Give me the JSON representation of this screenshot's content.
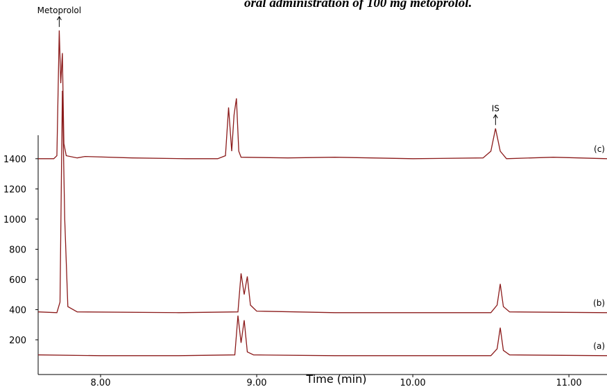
{
  "chart_data": {
    "type": "line",
    "title": "oral administration of 100 mg metoprolol.",
    "x_label": "Time (min)",
    "xlim": [
      7.6,
      11.244
    ],
    "ylim": [
      -30,
      2300
    ],
    "xticks": [
      {
        "value": 8,
        "label": "8.00"
      },
      {
        "value": 9,
        "label": "9.00"
      },
      {
        "value": 10,
        "label": "10.00"
      },
      {
        "value": 11,
        "label": "11.00"
      }
    ],
    "yticks": [
      200,
      400,
      600,
      800,
      1000,
      1200,
      1400
    ],
    "peak_labels": [
      "Metoprolol",
      "IS"
    ],
    "series": [
      {
        "name": "(c)",
        "color": "#8b1a1a",
        "x": [
          7.6,
          7.7,
          7.72,
          7.735,
          7.745,
          7.755,
          7.765,
          7.78,
          7.85,
          7.9,
          8.2,
          8.55,
          8.75,
          8.8,
          8.82,
          8.84,
          8.855,
          8.87,
          8.885,
          8.9,
          9.2,
          9.5,
          10.0,
          10.45,
          10.5,
          10.53,
          10.56,
          10.6,
          10.9,
          11.244
        ],
        "values": [
          1400,
          1400,
          1420,
          2250,
          1900,
          2100,
          1500,
          1420,
          1405,
          1415,
          1405,
          1400,
          1400,
          1420,
          1740,
          1450,
          1690,
          1800,
          1450,
          1410,
          1405,
          1410,
          1400,
          1405,
          1450,
          1600,
          1450,
          1400,
          1410,
          1400
        ]
      },
      {
        "name": "(b)",
        "color": "#8b1a1a",
        "x": [
          7.6,
          7.72,
          7.74,
          7.755,
          7.77,
          7.79,
          7.85,
          8.5,
          8.88,
          8.9,
          8.92,
          8.94,
          8.96,
          9.0,
          9.5,
          10.5,
          10.54,
          10.56,
          10.58,
          10.62,
          11.244
        ],
        "values": [
          385,
          380,
          450,
          1850,
          1000,
          420,
          385,
          380,
          385,
          640,
          500,
          620,
          430,
          390,
          380,
          380,
          430,
          570,
          420,
          385,
          380
        ]
      },
      {
        "name": "(a)",
        "color": "#8b1a1a",
        "x": [
          7.6,
          8.0,
          8.5,
          8.86,
          8.88,
          8.9,
          8.92,
          8.94,
          8.98,
          9.5,
          10.5,
          10.54,
          10.56,
          10.58,
          10.62,
          11.244
        ],
        "values": [
          100,
          95,
          95,
          100,
          360,
          180,
          330,
          120,
          100,
          95,
          95,
          140,
          280,
          130,
          100,
          95
        ]
      }
    ]
  }
}
